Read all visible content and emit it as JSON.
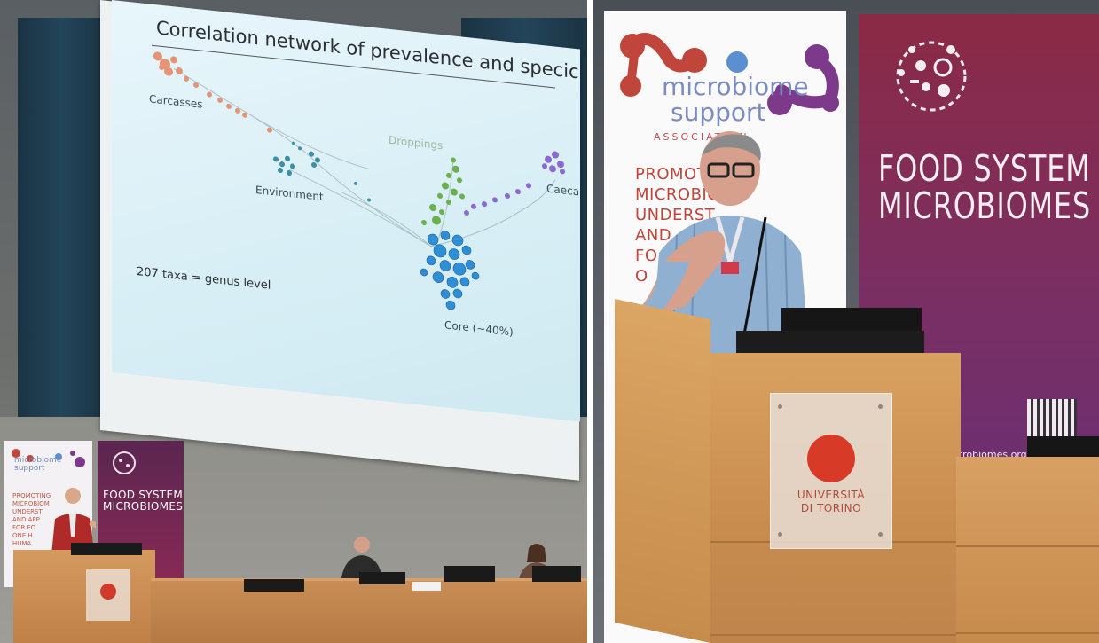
{
  "slide": {
    "title": "Correlation network of prevalence and specicity",
    "labels": {
      "carcasses": "Carcasses",
      "environment": "Environment",
      "droppings": "Droppings",
      "caeca": "Caeca",
      "core": "Core (~40%)"
    },
    "taxa_note": "207 taxa = genus level"
  },
  "banner_msa": {
    "logo_line1": "microbiome",
    "logo_line2": "support",
    "logo_line3": "ASSOCIATION",
    "tagline_lines": [
      "PROMOT",
      "MICROBIO",
      "UNDERST",
      "AND",
      "FO",
      "O"
    ]
  },
  "banner_fsm": {
    "title_line1": "FOOD SYSTEM",
    "title_line2": "MICROBIOMES",
    "url": "icrobiomes.org"
  },
  "small_banner_msa": {
    "logo": "microbiome support",
    "lines": [
      "PROMOTING",
      "MICROBIOM",
      "UNDERST",
      "AND APP",
      "FOR FO",
      "ONE H",
      "HUMA"
    ]
  },
  "small_banner_fsm": {
    "title_line1": "FOOD SYSTEM",
    "title_line2": "MICROBIOMES"
  },
  "podium_plate": {
    "line1": "UNIVERSITÀ",
    "line2": "DI TORINO"
  },
  "colors": {
    "msa_blue": "#7c8bc0",
    "msa_red": "#c0463c",
    "msa_purple": "#7d3a8a",
    "fsm_gradient_top": "#8b2a45",
    "fsm_gradient_bottom": "#5f2f7e",
    "unito_red": "#d83a28"
  }
}
